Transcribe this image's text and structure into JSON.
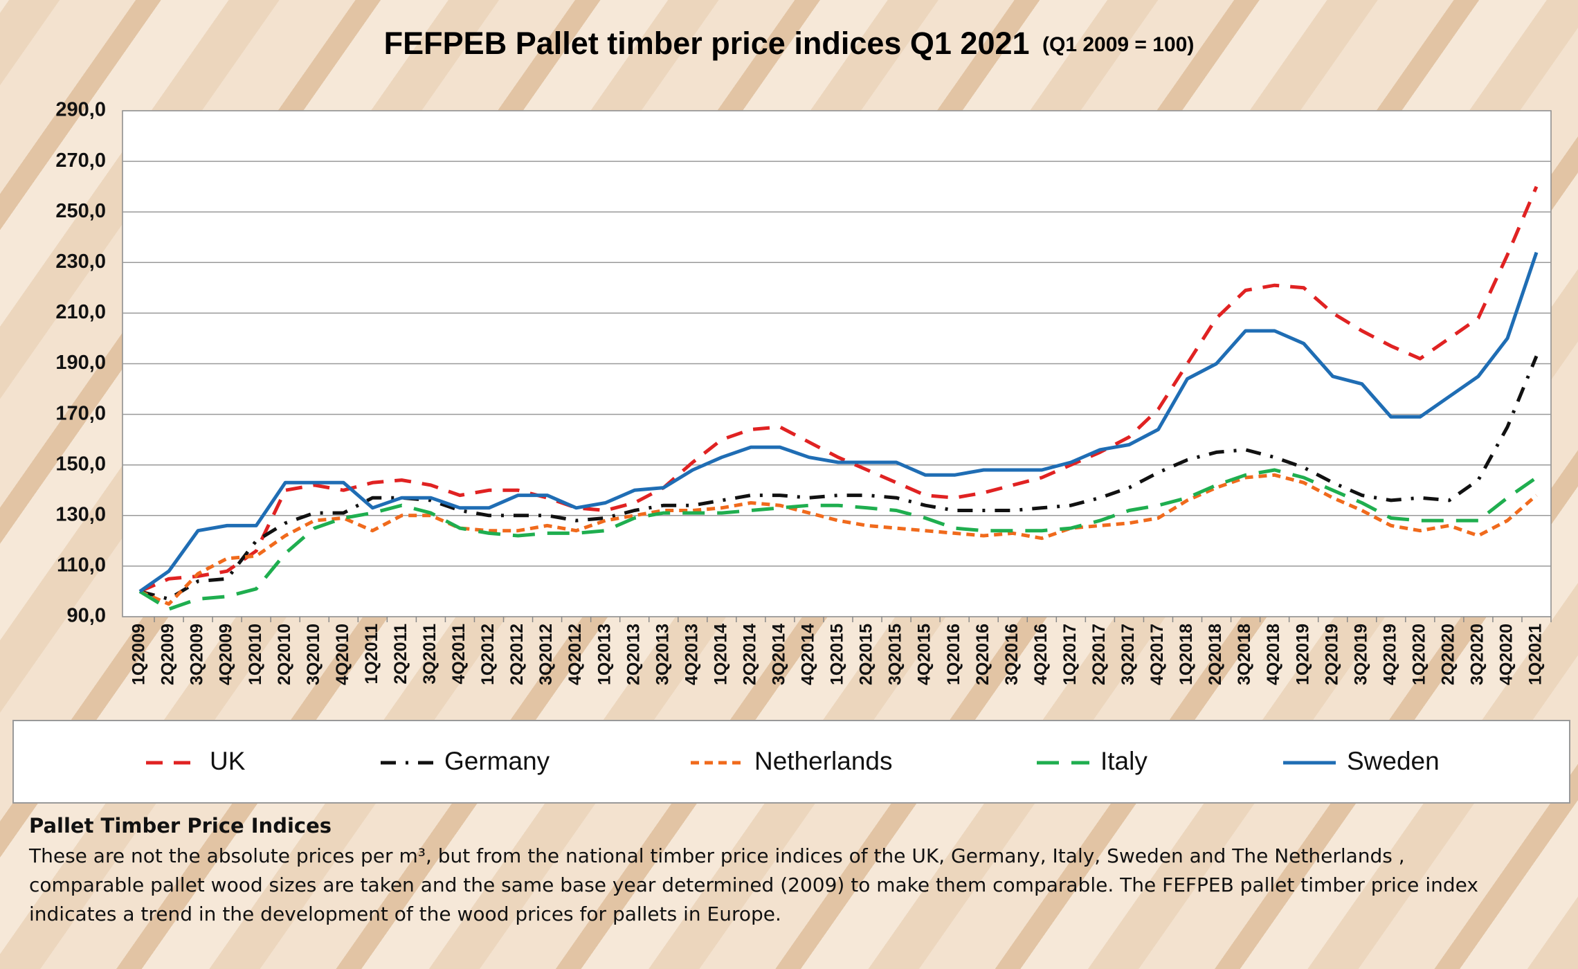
{
  "chart_data": {
    "type": "line",
    "title": "FEFPEB Pallet timber price indices Q1 2021",
    "subtitle": "(Q1 2009 = 100)",
    "categories": [
      "1Q2009",
      "2Q2009",
      "3Q2009",
      "4Q2009",
      "1Q2010",
      "2Q2010",
      "3Q2010",
      "4Q2010",
      "1Q2011",
      "2Q2011",
      "3Q2011",
      "4Q2011",
      "1Q2012",
      "2Q2012",
      "3Q2012",
      "4Q2012",
      "1Q2013",
      "2Q2013",
      "3Q2013",
      "4Q2013",
      "1Q2014",
      "2Q2014",
      "3Q2014",
      "4Q2014",
      "1Q2015",
      "2Q2015",
      "3Q2015",
      "4Q2015",
      "1Q2016",
      "2Q2016",
      "3Q2016",
      "4Q2016",
      "1Q2017",
      "2Q2017",
      "3Q2017",
      "4Q2017",
      "1Q2018",
      "2Q2018",
      "3Q2018",
      "4Q2018",
      "1Q2019",
      "2Q2019",
      "3Q2019",
      "4Q2019",
      "1Q2020",
      "2Q2020",
      "3Q2020",
      "4Q2020",
      "1Q2021"
    ],
    "series": [
      {
        "name": "UK",
        "color": "#e02222",
        "line_style": "dashed",
        "values": [
          100,
          105,
          106,
          108,
          116,
          140,
          142,
          140,
          143,
          144,
          142,
          138,
          140,
          140,
          137,
          133,
          132,
          135,
          141,
          151,
          160,
          164,
          165,
          159,
          153,
          148,
          143,
          138,
          137,
          139,
          142,
          145,
          150,
          155,
          161,
          172,
          190,
          208,
          219,
          221,
          220,
          210,
          203,
          197,
          192,
          200,
          208,
          233,
          260
        ]
      },
      {
        "name": "Germany",
        "color": "#111111",
        "line_style": "dash-dot",
        "values": [
          100,
          97,
          104,
          105,
          120,
          127,
          131,
          131,
          137,
          137,
          136,
          132,
          130,
          130,
          130,
          128,
          129,
          132,
          134,
          134,
          136,
          138,
          138,
          137,
          138,
          138,
          137,
          134,
          132,
          132,
          132,
          133,
          134,
          137,
          141,
          147,
          152,
          155,
          156,
          153,
          149,
          143,
          138,
          136,
          137,
          136,
          144,
          165,
          193
        ]
      },
      {
        "name": "Netherlands",
        "color": "#f06a1c",
        "line_style": "short-dash",
        "values": [
          100,
          95,
          107,
          113,
          114,
          122,
          128,
          129,
          124,
          130,
          130,
          125,
          124,
          124,
          126,
          124,
          128,
          130,
          132,
          132,
          133,
          135,
          134,
          131,
          128,
          126,
          125,
          124,
          123,
          122,
          123,
          121,
          125,
          126,
          127,
          129,
          136,
          141,
          145,
          146,
          143,
          137,
          132,
          126,
          124,
          126,
          122,
          128,
          138
        ]
      },
      {
        "name": "Italy",
        "color": "#1fae4f",
        "line_style": "long-dash",
        "values": [
          100,
          93,
          97,
          98,
          101,
          115,
          125,
          129,
          131,
          134,
          131,
          125,
          123,
          122,
          123,
          123,
          124,
          129,
          131,
          131,
          131,
          132,
          133,
          134,
          134,
          133,
          132,
          129,
          125,
          124,
          124,
          124,
          125,
          128,
          132,
          134,
          137,
          142,
          146,
          148,
          145,
          140,
          135,
          129,
          128,
          128,
          128,
          137,
          145
        ]
      },
      {
        "name": "Sweden",
        "color": "#1f6db4",
        "line_style": "solid",
        "values": [
          100,
          108,
          124,
          126,
          126,
          143,
          143,
          143,
          133,
          137,
          137,
          133,
          133,
          138,
          138,
          133,
          135,
          140,
          141,
          148,
          153,
          157,
          157,
          153,
          151,
          151,
          151,
          146,
          146,
          148,
          148,
          148,
          151,
          156,
          158,
          164,
          184,
          190,
          203,
          203,
          198,
          185,
          182,
          169,
          169,
          177,
          185,
          200,
          234
        ]
      }
    ],
    "ylim": [
      90,
      290
    ],
    "yticks": [
      {
        "value": 90,
        "label": "90,0"
      },
      {
        "value": 110,
        "label": "110,0"
      },
      {
        "value": 130,
        "label": "130,0"
      },
      {
        "value": 150,
        "label": "150,0"
      },
      {
        "value": 170,
        "label": "170,0"
      },
      {
        "value": 190,
        "label": "190,0"
      },
      {
        "value": 210,
        "label": "210,0"
      },
      {
        "value": 230,
        "label": "230,0"
      },
      {
        "value": 250,
        "label": "250,0"
      },
      {
        "value": 270,
        "label": "270,0"
      },
      {
        "value": 290,
        "label": "290,0"
      }
    ],
    "grid": true,
    "legend": "bottom"
  },
  "note": {
    "title": "Pallet Timber Price Indices",
    "lines": [
      "These are not the absolute prices per m³, but from the national timber price indices of the UK, Germany, Italy, Sweden and The Netherlands ,",
      "comparable pallet  wood sizes are taken and the same base year determined (2009) to make them comparable. The FEFPEB pallet timber price index",
      "indicates a trend in the development of the wood prices for pallets in Europe."
    ]
  }
}
